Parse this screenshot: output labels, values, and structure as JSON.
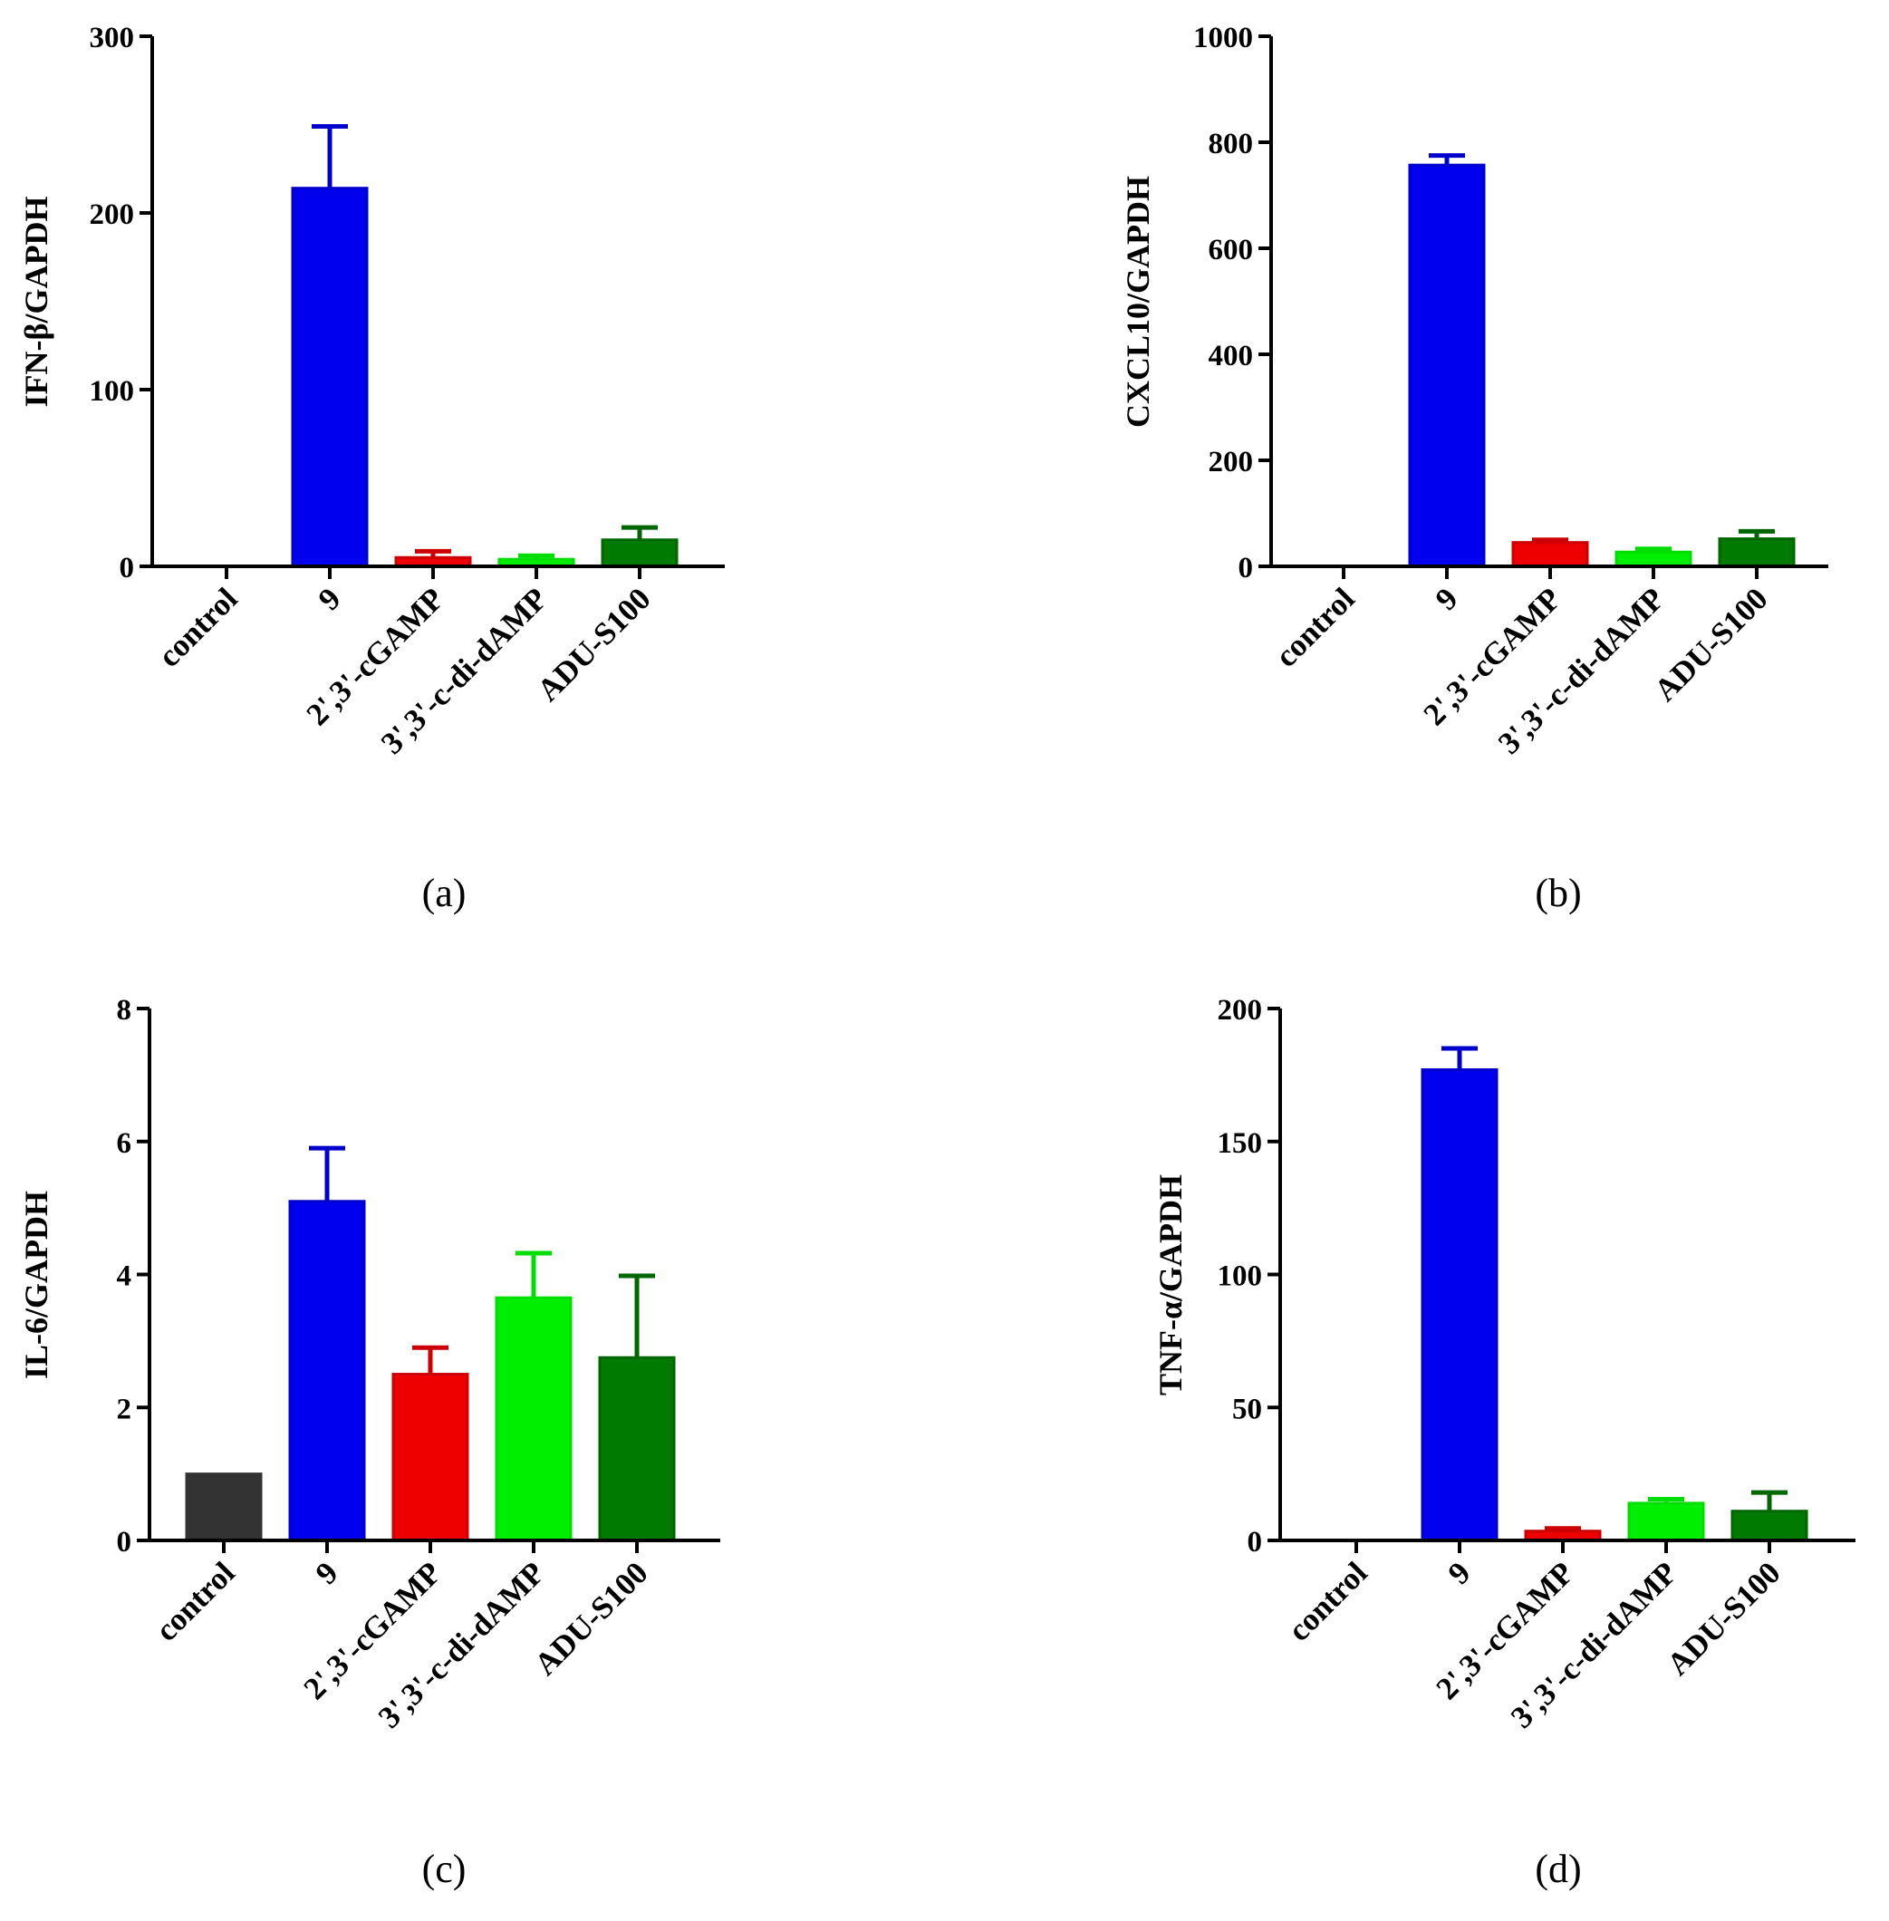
{
  "chart_data": [
    {
      "type": "bar",
      "panel_label": "(a)",
      "ylabel": "IFN-β/GAPDH",
      "xlabel": "",
      "ylim": [
        0,
        300
      ],
      "yticks": [
        0,
        100,
        200,
        300
      ],
      "categories": [
        "control",
        "9",
        "2',3'-cGAMP",
        "3',3'-c-di-dAMP",
        "ADU-S100"
      ],
      "values": [
        0,
        214,
        5,
        4,
        15
      ],
      "errors": [
        0,
        35,
        3.5,
        2,
        7
      ],
      "colors": [
        "#333333",
        "#0000ee",
        "#ee0000",
        "#00ee00",
        "#007a00"
      ],
      "error_colors": [
        "#333333",
        "#0000cc",
        "#cc0000",
        "#00dd00",
        "#006600"
      ]
    },
    {
      "type": "bar",
      "panel_label": "(b)",
      "ylabel": "CXCL10/GAPDH",
      "xlabel": "",
      "ylim": [
        0,
        1000
      ],
      "yticks": [
        0,
        200,
        400,
        600,
        800,
        1000
      ],
      "categories": [
        "control",
        "9",
        "2',3'-cGAMP",
        "3',3'-c-di-dAMP",
        "ADU-S100"
      ],
      "values": [
        0,
        757,
        45,
        27,
        52
      ],
      "errors": [
        0,
        18,
        5,
        6,
        14
      ],
      "colors": [
        "#333333",
        "#0000ee",
        "#ee0000",
        "#00ee00",
        "#007a00"
      ],
      "error_colors": [
        "#333333",
        "#0000cc",
        "#cc0000",
        "#00dd00",
        "#006600"
      ]
    },
    {
      "type": "bar",
      "panel_label": "(c)",
      "ylabel": "IL-6/GAPDH",
      "xlabel": "",
      "ylim": [
        0,
        8
      ],
      "yticks": [
        0,
        2,
        4,
        6,
        8
      ],
      "categories": [
        "control",
        "9",
        "2',3'-cGAMP",
        "3',3'-c-di-dAMP",
        "ADU-S100"
      ],
      "values": [
        1.0,
        5.1,
        2.5,
        3.65,
        2.75
      ],
      "errors": [
        0,
        0.8,
        0.4,
        0.67,
        1.23
      ],
      "colors": [
        "#333333",
        "#0000ee",
        "#ee0000",
        "#00ee00",
        "#007a00"
      ],
      "error_colors": [
        "#333333",
        "#0000cc",
        "#cc0000",
        "#00dd00",
        "#006600"
      ]
    },
    {
      "type": "bar",
      "panel_label": "(d)",
      "ylabel": "TNF-α/GAPDH",
      "xlabel": "",
      "ylim": [
        0,
        200
      ],
      "yticks": [
        0,
        50,
        100,
        150,
        200
      ],
      "categories": [
        "control",
        "9",
        "2',3'-cGAMP",
        "3',3'-c-di-dAMP",
        "ADU-S100"
      ],
      "values": [
        0,
        177,
        3.5,
        14,
        11
      ],
      "errors": [
        0,
        8,
        1,
        1.5,
        7
      ],
      "colors": [
        "#333333",
        "#0000ee",
        "#ee0000",
        "#00ee00",
        "#007a00"
      ],
      "error_colors": [
        "#333333",
        "#0000cc",
        "#cc0000",
        "#00dd00",
        "#006600"
      ]
    }
  ]
}
